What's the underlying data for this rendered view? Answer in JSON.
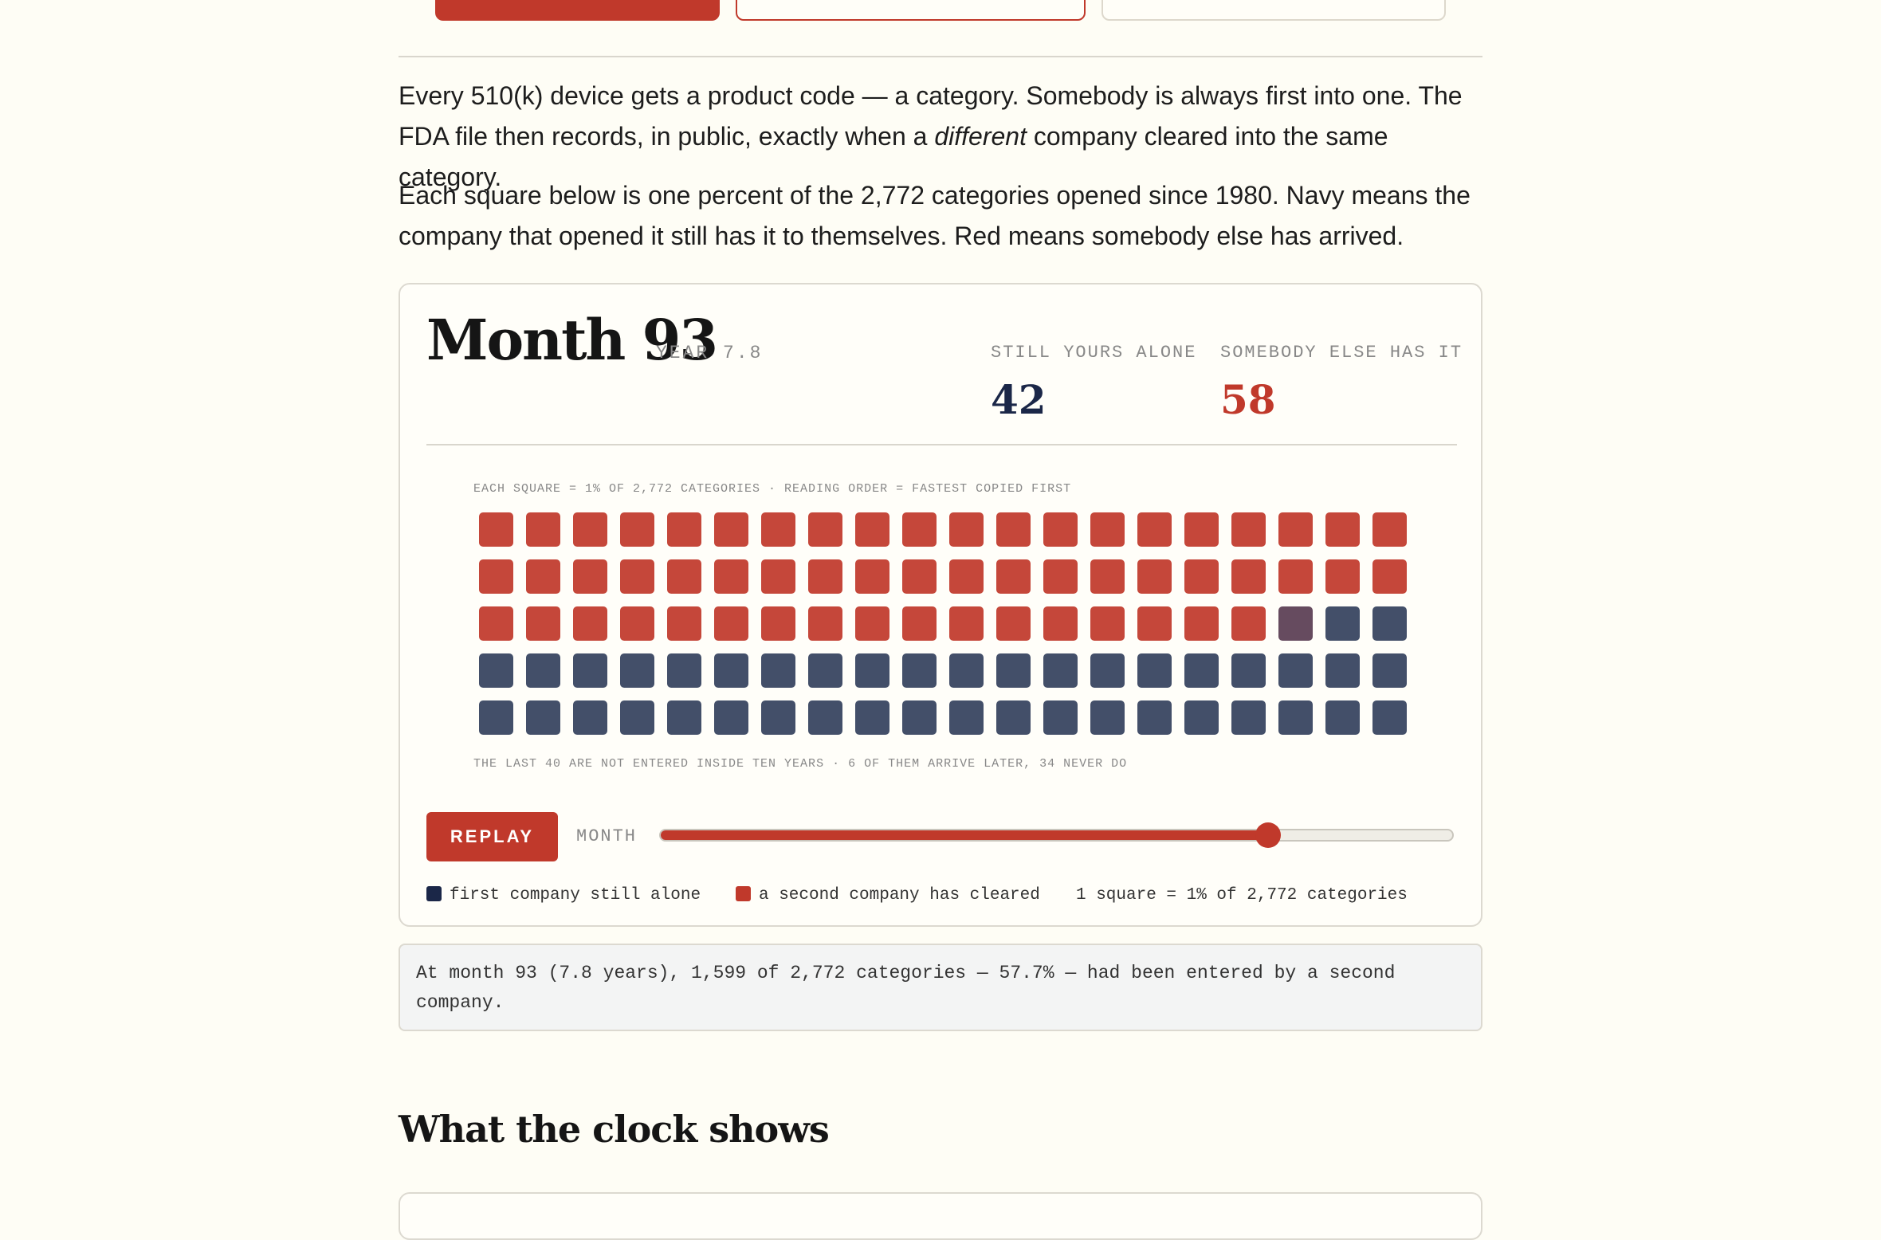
{
  "intro": {
    "p1_before": "Every 510(k) device gets a product code — a category. Somebody is always first into one. The FDA file then records, in public, exactly when a ",
    "p1_em": "different",
    "p1_after": " company cleared into the same category.",
    "p2": "Each square below is one percent of the 2,772 categories opened since 1980. Navy means the company that opened it still has it to themselves. Red means somebody else has arrived."
  },
  "panel": {
    "month_title": "Month 93",
    "year_label": "YEAR 7.8",
    "stats": {
      "alone_label": "STILL YOURS ALONE",
      "alone_value": "42",
      "entered_label": "SOMEBODY ELSE HAS IT",
      "entered_value": "58"
    },
    "caption_top": "EACH SQUARE = 1% OF 2,772 CATEGORIES · READING ORDER = FASTEST COPIED FIRST",
    "caption_bottom": "THE LAST 40 ARE NOT ENTERED INSIDE TEN YEARS · 6 OF THEM ARRIVE LATER, 34 NEVER DO",
    "replay_label": "REPLAY",
    "month_label": "MONTH",
    "slider": {
      "fraction": 0.767
    },
    "legend": {
      "alone": "first company still alone",
      "entered": "a second company has cleared",
      "scale": "1 square = 1% of 2,772 categories"
    }
  },
  "waffle": {
    "columns": 20,
    "total": 100,
    "entered": 57,
    "transitioning": 1,
    "colors": {
      "entered": "#c5473a",
      "alone": "#434f69",
      "transitioning": "#664b5f",
      "swatch_alone": "#1b2748",
      "swatch_entered": "#c0392b"
    }
  },
  "summary": "At month 93 (7.8 years), 1,599 of 2,772 categories — 57.7% — had been entered by a second company.",
  "section_heading": "What the clock shows"
}
